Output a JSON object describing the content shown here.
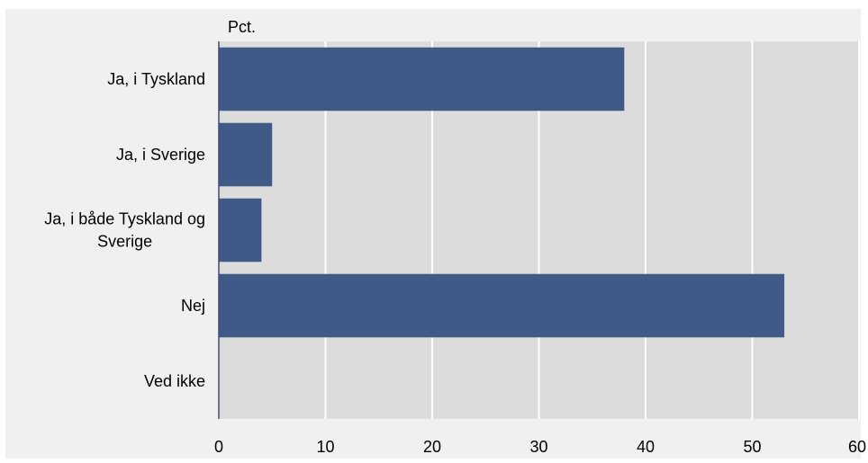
{
  "colors": {
    "frame_background": "#f0f0f0",
    "plot_background": "#dcdcdc",
    "bar": "#405a87",
    "gridline": "#ffffff",
    "axis": "#404a6e"
  },
  "chart_data": {
    "type": "bar",
    "orientation": "horizontal",
    "unit_label": "Pct.",
    "title": "",
    "xlabel": "",
    "ylabel": "",
    "categories": [
      [
        "Ja, i Tyskland"
      ],
      [
        "Ja, i Sverige"
      ],
      [
        "Ja, i både Tyskland og",
        "Sverige"
      ],
      [
        "Nej"
      ],
      [
        "Ved ikke"
      ]
    ],
    "values": [
      38,
      5,
      4,
      53,
      0
    ],
    "xlim": [
      0,
      60
    ],
    "xticks": [
      0,
      10,
      20,
      30,
      40,
      50,
      60
    ],
    "grid": true,
    "legend": "none"
  }
}
